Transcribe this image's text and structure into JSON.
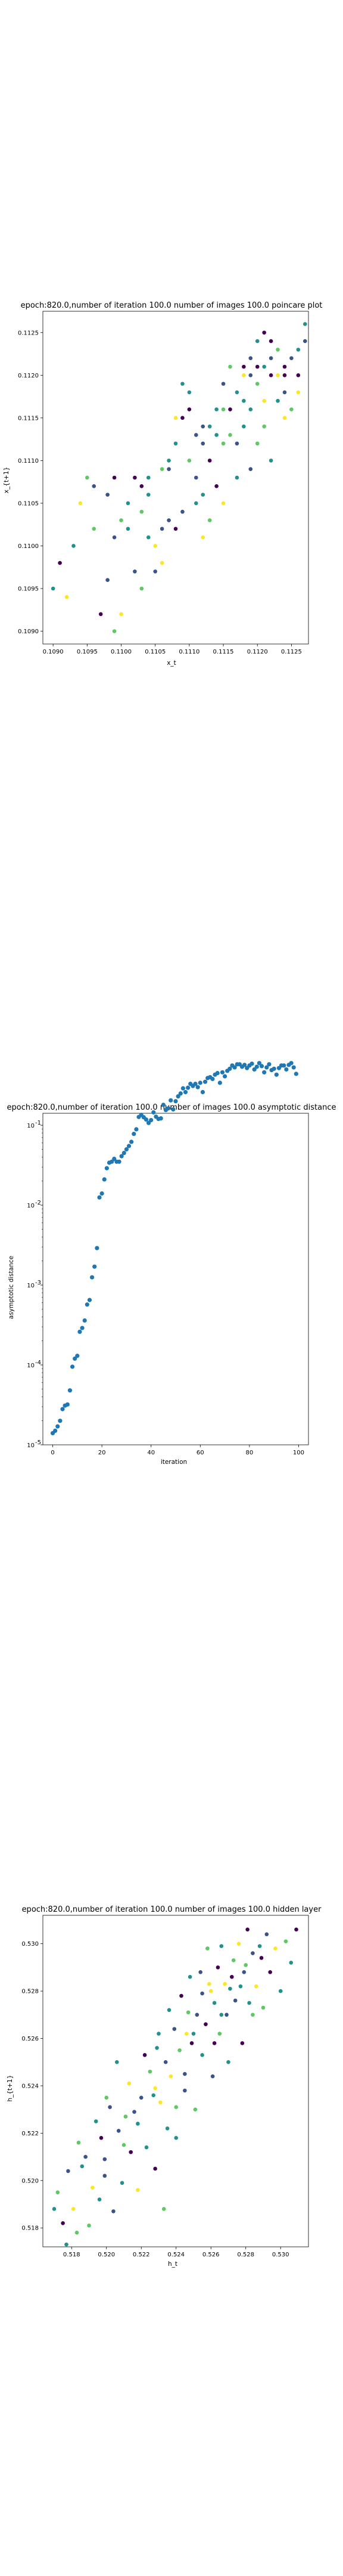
{
  "chart_data": [
    {
      "type": "scatter",
      "title": "epoch:820.0,number of iteration 100.0 number of images 100.0 poincare plot",
      "xlabel": "x_t",
      "ylabel": "x_{t+1}",
      "xlim": [
        0.10885,
        0.11275
      ],
      "ylim": [
        0.10885,
        0.11275
      ],
      "xticks": [
        "0.1090",
        "0.1095",
        "0.1100",
        "0.1105",
        "0.1110",
        "0.1115",
        "0.1120",
        "0.1125"
      ],
      "yticks": [
        "0.1090",
        "0.1095",
        "0.1100",
        "0.1105",
        "0.1110",
        "0.1115",
        "0.1120",
        "0.1125"
      ],
      "color_scale": [
        "#440154",
        "#3b528b",
        "#21918c",
        "#5ec962",
        "#fde725"
      ],
      "grid": false,
      "points": [
        [
          0.109,
          0.1095,
          2
        ],
        [
          0.1091,
          0.1098,
          0
        ],
        [
          0.1092,
          0.1094,
          4
        ],
        [
          0.1094,
          0.1105,
          4
        ],
        [
          0.1095,
          0.1108,
          3
        ],
        [
          0.1096,
          0.1107,
          1
        ],
        [
          0.1097,
          0.1092,
          0
        ],
        [
          0.1098,
          0.1096,
          1
        ],
        [
          0.1099,
          0.109,
          3
        ],
        [
          0.1099,
          0.1101,
          1
        ],
        [
          0.1099,
          0.1108,
          0
        ],
        [
          0.11,
          0.1092,
          4
        ],
        [
          0.1101,
          0.1102,
          2
        ],
        [
          0.1102,
          0.1108,
          0
        ],
        [
          0.1102,
          0.1097,
          1
        ],
        [
          0.1103,
          0.1095,
          3
        ],
        [
          0.1103,
          0.1104,
          3
        ],
        [
          0.1104,
          0.1101,
          2
        ],
        [
          0.1104,
          0.1106,
          2
        ],
        [
          0.1105,
          0.1097,
          1
        ],
        [
          0.1105,
          0.11,
          4
        ],
        [
          0.1106,
          0.1098,
          4
        ],
        [
          0.1106,
          0.1109,
          3
        ],
        [
          0.1107,
          0.1103,
          1
        ],
        [
          0.1107,
          0.1109,
          1
        ],
        [
          0.1108,
          0.1112,
          2
        ],
        [
          0.1108,
          0.1115,
          4
        ],
        [
          0.1108,
          0.1102,
          0
        ],
        [
          0.1109,
          0.1119,
          2
        ],
        [
          0.1109,
          0.1104,
          1
        ],
        [
          0.111,
          0.1116,
          0
        ],
        [
          0.111,
          0.111,
          3
        ],
        [
          0.111,
          0.1118,
          2
        ],
        [
          0.1111,
          0.1105,
          2
        ],
        [
          0.1111,
          0.1108,
          1
        ],
        [
          0.1112,
          0.1101,
          4
        ],
        [
          0.1112,
          0.1106,
          2
        ],
        [
          0.1112,
          0.1114,
          1
        ],
        [
          0.1113,
          0.1103,
          3
        ],
        [
          0.1113,
          0.111,
          0
        ],
        [
          0.1113,
          0.1114,
          2
        ],
        [
          0.1114,
          0.1116,
          2
        ],
        [
          0.1114,
          0.1107,
          0
        ],
        [
          0.1115,
          0.1105,
          4
        ],
        [
          0.1115,
          0.1112,
          3
        ],
        [
          0.1115,
          0.1119,
          1
        ],
        [
          0.1116,
          0.1116,
          0
        ],
        [
          0.1116,
          0.1121,
          3
        ],
        [
          0.1117,
          0.1118,
          2
        ],
        [
          0.1117,
          0.1112,
          1
        ],
        [
          0.1117,
          0.1108,
          2
        ],
        [
          0.1118,
          0.1114,
          2
        ],
        [
          0.1118,
          0.112,
          4
        ],
        [
          0.1118,
          0.1121,
          0
        ],
        [
          0.1119,
          0.1109,
          1
        ],
        [
          0.1119,
          0.1116,
          2
        ],
        [
          0.1119,
          0.1122,
          1
        ],
        [
          0.112,
          0.1112,
          3
        ],
        [
          0.112,
          0.1124,
          2
        ],
        [
          0.112,
          0.1119,
          3
        ],
        [
          0.1121,
          0.1114,
          3
        ],
        [
          0.1121,
          0.1117,
          4
        ],
        [
          0.1121,
          0.1125,
          0
        ],
        [
          0.1122,
          0.1122,
          1
        ],
        [
          0.1122,
          0.111,
          2
        ],
        [
          0.1122,
          0.112,
          0
        ],
        [
          0.1123,
          0.1123,
          3
        ],
        [
          0.1123,
          0.112,
          4
        ],
        [
          0.1123,
          0.1117,
          2
        ],
        [
          0.1124,
          0.1121,
          0
        ],
        [
          0.1124,
          0.1115,
          4
        ],
        [
          0.1124,
          0.1118,
          1
        ],
        [
          0.1124,
          0.112,
          0
        ],
        [
          0.1125,
          0.1122,
          1
        ],
        [
          0.1125,
          0.1116,
          3
        ],
        [
          0.1126,
          0.1123,
          2
        ],
        [
          0.1126,
          0.112,
          0
        ],
        [
          0.1126,
          0.1118,
          4
        ],
        [
          0.1127,
          0.1124,
          1
        ],
        [
          0.1127,
          0.1126,
          2
        ],
        [
          0.1122,
          0.1124,
          0
        ],
        [
          0.1121,
          0.1121,
          2
        ],
        [
          0.1119,
          0.112,
          1
        ],
        [
          0.112,
          0.1121,
          0
        ],
        [
          0.1118,
          0.1117,
          2
        ],
        [
          0.1115,
          0.1116,
          3
        ],
        [
          0.1116,
          0.1113,
          3
        ],
        [
          0.1114,
          0.1113,
          2
        ],
        [
          0.1112,
          0.1112,
          1
        ],
        [
          0.1111,
          0.1113,
          1
        ],
        [
          0.1109,
          0.1115,
          0
        ],
        [
          0.1106,
          0.1102,
          1
        ],
        [
          0.1104,
          0.1108,
          2
        ],
        [
          0.1101,
          0.1105,
          2
        ],
        [
          0.1098,
          0.1106,
          1
        ],
        [
          0.1096,
          0.1102,
          3
        ],
        [
          0.1093,
          0.11,
          2
        ],
        [
          0.11,
          0.1103,
          3
        ],
        [
          0.1103,
          0.1107,
          0
        ],
        [
          0.1107,
          0.111,
          2
        ]
      ]
    },
    {
      "type": "scatter",
      "title": "epoch:820.0,number of iteration 100.0  number of images 100.0 asymptotic distance",
      "xlabel": "iteration",
      "ylabel": "asymptotic distance",
      "xlim": [
        -4,
        104
      ],
      "ylim_log10": [
        -5,
        -0.85
      ],
      "log_scale_y": true,
      "xticks": [
        0,
        20,
        40,
        60,
        80,
        100
      ],
      "yticks_exponents": [
        -5,
        -4,
        -3,
        -2,
        -1
      ],
      "ytick_base": "10",
      "color": "#1f77b4",
      "grid": false,
      "x": [
        0,
        1,
        2,
        3,
        4,
        5,
        6,
        7,
        8,
        9,
        10,
        11,
        12,
        13,
        14,
        15,
        16,
        17,
        18,
        19,
        20,
        21,
        22,
        23,
        24,
        25,
        26,
        27,
        28,
        29,
        30,
        31,
        32,
        33,
        34,
        35,
        36,
        37,
        38,
        39,
        40,
        41,
        42,
        43,
        44,
        45,
        46,
        47,
        48,
        49,
        50,
        51,
        52,
        53,
        54,
        55,
        56,
        57,
        58,
        59,
        60,
        61,
        62,
        63,
        64,
        65,
        66,
        67,
        68,
        69,
        70,
        71,
        72,
        73,
        74,
        75,
        76,
        77,
        78,
        79,
        80,
        81,
        82,
        83,
        84,
        85,
        86,
        87,
        88,
        89,
        90,
        91,
        92,
        93,
        94,
        95,
        96,
        97,
        98,
        99
      ],
      "y": [
        1.4e-05,
        1.5e-05,
        1.7e-05,
        2e-05,
        2.8e-05,
        3.1e-05,
        3.2e-05,
        4.8e-05,
        9.5e-05,
        0.00012,
        0.00013,
        0.00026,
        0.00029,
        0.00036,
        0.00057,
        0.00065,
        0.00125,
        0.0017,
        0.0029,
        0.0125,
        0.014,
        0.021,
        0.029,
        0.034,
        0.035,
        0.038,
        0.035,
        0.035,
        0.041,
        0.045,
        0.05,
        0.055,
        0.062,
        0.078,
        0.089,
        0.127,
        0.135,
        0.126,
        0.118,
        0.107,
        0.116,
        0.145,
        0.128,
        0.12,
        0.122,
        0.18,
        0.155,
        0.163,
        0.205,
        0.158,
        0.2,
        0.23,
        0.25,
        0.29,
        0.26,
        0.295,
        0.33,
        0.31,
        0.33,
        0.3,
        0.34,
        0.26,
        0.35,
        0.39,
        0.4,
        0.38,
        0.43,
        0.45,
        0.34,
        0.46,
        0.41,
        0.48,
        0.51,
        0.56,
        0.53,
        0.58,
        0.58,
        0.54,
        0.57,
        0.52,
        0.56,
        0.59,
        0.5,
        0.54,
        0.6,
        0.55,
        0.46,
        0.53,
        0.58,
        0.49,
        0.51,
        0.43,
        0.52,
        0.56,
        0.56,
        0.5,
        0.57,
        0.6,
        0.53,
        0.44
      ]
    },
    {
      "type": "scatter",
      "title": "epoch:820.0,number of iteration 100.0  number of images 100.0 hidden layer",
      "xlabel": "h_t",
      "ylabel": "h_{t+1}",
      "xlim": [
        0.51635,
        0.5316
      ],
      "ylim": [
        0.5172,
        0.5312
      ],
      "xticks": [
        "0.518",
        "0.520",
        "0.522",
        "0.524",
        "0.526",
        "0.528",
        "0.530"
      ],
      "yticks": [
        "0.518",
        "0.520",
        "0.522",
        "0.524",
        "0.526",
        "0.528",
        "0.530"
      ],
      "color_scale": [
        "#440154",
        "#3b528b",
        "#21918c",
        "#5ec962",
        "#fde725"
      ],
      "grid": false,
      "points": [
        [
          0.517,
          0.5188,
          2
        ],
        [
          0.5172,
          0.5195,
          3
        ],
        [
          0.5175,
          0.5182,
          0
        ],
        [
          0.5177,
          0.5173,
          2
        ],
        [
          0.5178,
          0.5204,
          1
        ],
        [
          0.5181,
          0.5188,
          4
        ],
        [
          0.5183,
          0.5178,
          3
        ],
        [
          0.5184,
          0.5216,
          3
        ],
        [
          0.5186,
          0.5206,
          2
        ],
        [
          0.5188,
          0.521,
          1
        ],
        [
          0.519,
          0.5181,
          3
        ],
        [
          0.5192,
          0.5197,
          4
        ],
        [
          0.5194,
          0.5225,
          2
        ],
        [
          0.5196,
          0.5192,
          2
        ],
        [
          0.5197,
          0.5218,
          0
        ],
        [
          0.5199,
          0.5202,
          1
        ],
        [
          0.52,
          0.5235,
          3
        ],
        [
          0.5202,
          0.5231,
          1
        ],
        [
          0.5204,
          0.5187,
          1
        ],
        [
          0.5206,
          0.525,
          2
        ],
        [
          0.5207,
          0.5221,
          1
        ],
        [
          0.5209,
          0.5199,
          2
        ],
        [
          0.5211,
          0.5227,
          3
        ],
        [
          0.5213,
          0.5241,
          4
        ],
        [
          0.5214,
          0.5212,
          0
        ],
        [
          0.5216,
          0.5229,
          1
        ],
        [
          0.5218,
          0.5196,
          4
        ],
        [
          0.522,
          0.5235,
          1
        ],
        [
          0.5222,
          0.5253,
          0
        ],
        [
          0.5223,
          0.5214,
          2
        ],
        [
          0.5225,
          0.5246,
          3
        ],
        [
          0.5227,
          0.5236,
          2
        ],
        [
          0.5228,
          0.5205,
          0
        ],
        [
          0.523,
          0.5262,
          2
        ],
        [
          0.5231,
          0.5233,
          4
        ],
        [
          0.5233,
          0.5188,
          3
        ],
        [
          0.5234,
          0.525,
          1
        ],
        [
          0.5236,
          0.5272,
          2
        ],
        [
          0.5237,
          0.5244,
          4
        ],
        [
          0.5239,
          0.5264,
          1
        ],
        [
          0.524,
          0.5218,
          2
        ],
        [
          0.5242,
          0.5255,
          3
        ],
        [
          0.5243,
          0.5278,
          0
        ],
        [
          0.5245,
          0.5238,
          1
        ],
        [
          0.5246,
          0.5262,
          4
        ],
        [
          0.5248,
          0.5286,
          2
        ],
        [
          0.5249,
          0.5258,
          0
        ],
        [
          0.5251,
          0.523,
          3
        ],
        [
          0.5252,
          0.527,
          1
        ],
        [
          0.5254,
          0.5288,
          1
        ],
        [
          0.5255,
          0.5253,
          2
        ],
        [
          0.5257,
          0.5266,
          0
        ],
        [
          0.5258,
          0.5298,
          3
        ],
        [
          0.5259,
          0.5283,
          4
        ],
        [
          0.5261,
          0.5244,
          1
        ],
        [
          0.5262,
          0.5275,
          2
        ],
        [
          0.5264,
          0.529,
          0
        ],
        [
          0.5265,
          0.5262,
          3
        ],
        [
          0.5266,
          0.5299,
          2
        ],
        [
          0.5268,
          0.5283,
          4
        ],
        [
          0.5269,
          0.527,
          1
        ],
        [
          0.527,
          0.525,
          2
        ],
        [
          0.5272,
          0.5286,
          0
        ],
        [
          0.5273,
          0.5293,
          3
        ],
        [
          0.5274,
          0.5276,
          1
        ],
        [
          0.5276,
          0.53,
          4
        ],
        [
          0.5277,
          0.5282,
          2
        ],
        [
          0.5278,
          0.5258,
          0
        ],
        [
          0.528,
          0.5291,
          3
        ],
        [
          0.5281,
          0.5306,
          0
        ],
        [
          0.5282,
          0.5275,
          2
        ],
        [
          0.5284,
          0.5296,
          1
        ],
        [
          0.5286,
          0.5282,
          4
        ],
        [
          0.5288,
          0.5299,
          2
        ],
        [
          0.529,
          0.5273,
          3
        ],
        [
          0.5292,
          0.5304,
          1
        ],
        [
          0.5294,
          0.5288,
          0
        ],
        [
          0.5297,
          0.5298,
          4
        ],
        [
          0.53,
          0.528,
          2
        ],
        [
          0.5303,
          0.5301,
          3
        ],
        [
          0.5306,
          0.5292,
          2
        ],
        [
          0.5309,
          0.5306,
          0
        ],
        [
          0.525,
          0.5262,
          2
        ],
        [
          0.5245,
          0.5245,
          1
        ],
        [
          0.524,
          0.5231,
          3
        ],
        [
          0.5235,
          0.5222,
          2
        ],
        [
          0.5228,
          0.5239,
          4
        ],
        [
          0.5218,
          0.5224,
          2
        ],
        [
          0.521,
          0.5215,
          3
        ],
        [
          0.5199,
          0.5209,
          1
        ],
        [
          0.5262,
          0.5258,
          0
        ],
        [
          0.5266,
          0.527,
          2
        ],
        [
          0.5255,
          0.5279,
          1
        ],
        [
          0.5247,
          0.5271,
          3
        ],
        [
          0.5271,
          0.5281,
          2
        ],
        [
          0.5279,
          0.5288,
          1
        ],
        [
          0.5284,
          0.527,
          3
        ],
        [
          0.5289,
          0.5294,
          0
        ],
        [
          0.526,
          0.528,
          4
        ],
        [
          0.5229,
          0.5256,
          2
        ]
      ]
    }
  ]
}
